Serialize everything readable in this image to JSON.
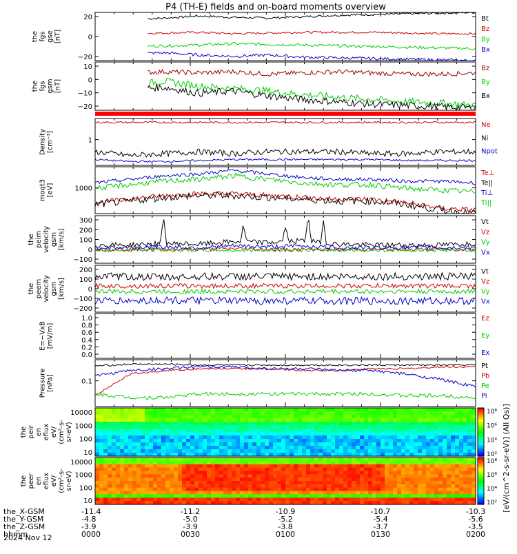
{
  "title": "P4 (TH-E) fields and on-board moments overview",
  "colorbar_label": "[eV/(cm^2-s-sr-eV)] (All Qs)]",
  "colorbar_ticks": [
    "10⁸",
    "10⁶",
    "10⁴",
    "10²"
  ],
  "colorbar_ticks2": [
    "10⁸",
    "10⁶",
    "10⁴",
    "10²"
  ],
  "date": "2024 Nov 12",
  "ephem": {
    "labels": [
      "the_X-GSM",
      "the_Y-GSM",
      "the_Z-GSM",
      "hhmm"
    ],
    "columns": [
      [
        "-11.4",
        "-4.8",
        "-3.9",
        "0000"
      ],
      [
        "-11.2",
        "-5.0",
        "-3.9",
        "0030"
      ],
      [
        "-10.9",
        "-5.2",
        "-3.8",
        "0100"
      ],
      [
        "-10.7",
        "-5.4",
        "-3.7",
        "0130"
      ],
      [
        "-10.3",
        "-5.6",
        "-3.5",
        "0200"
      ]
    ]
  },
  "chart_data": [
    {
      "type": "line",
      "ylabel": [
        "the",
        "fgs",
        "gse",
        "[nT]"
      ],
      "yticks": [
        "20",
        "0",
        "−20"
      ],
      "ylim": [
        -30,
        38
      ],
      "series": [
        {
          "name": "Bt",
          "color": "#000000",
          "start": 0.14,
          "base": 30,
          "shape": [
            0,
            -2,
            0,
            3,
            1,
            0,
            2,
            4,
            5,
            6,
            7,
            8
          ],
          "noise": 1.5
        },
        {
          "name": "Bz",
          "color": "#cc0000",
          "start": 0.14,
          "base": 7,
          "shape": [
            0,
            1,
            2,
            3,
            1,
            2,
            3,
            3,
            3,
            2,
            1,
            1
          ],
          "noise": 1.5
        },
        {
          "name": "By",
          "color": "#00cc00",
          "start": 0.14,
          "base": -8,
          "shape": [
            0,
            -2,
            -1,
            0,
            2,
            1,
            0,
            -1,
            -2,
            -3,
            -4,
            -5
          ],
          "noise": 2
        },
        {
          "name": "Bx",
          "color": "#0000cc",
          "start": 0.14,
          "base": -22,
          "shape": [
            0,
            2,
            3,
            0,
            -2,
            0,
            -3,
            -4,
            -5,
            -6,
            -7,
            -8
          ],
          "noise": 2
        }
      ]
    },
    {
      "type": "line",
      "ylabel": [
        "the",
        "fgs",
        "gsm",
        "[nT]"
      ],
      "yticks": [
        "10",
        "0",
        "−10",
        "−20"
      ],
      "ylim": [
        -26,
        14
      ],
      "series": [
        {
          "name": "Bz",
          "color": "#990000",
          "start": 0.14,
          "base": 3,
          "shape": [
            0,
            2,
            3,
            2,
            3,
            1,
            2,
            3,
            2,
            1,
            1,
            2
          ],
          "noise": 2
        },
        {
          "name": "By",
          "color": "#00cc00",
          "start": 0.14,
          "base": -10,
          "shape": [
            0,
            5,
            8,
            4,
            2,
            0,
            -3,
            -5,
            -7,
            -9,
            -10,
            -12
          ],
          "noise": 3
        },
        {
          "name": "Bx",
          "color": "#000000",
          "start": 0.14,
          "base": -12,
          "shape": [
            0,
            4,
            5,
            0,
            2,
            -2,
            -5,
            -7,
            -9,
            -10,
            -11,
            -12
          ],
          "noise": 3
        }
      ]
    },
    {
      "type": "bar_strip",
      "color": "#ff0000"
    },
    {
      "type": "line",
      "ylabel": [
        "Density",
        "[cm⁻³]"
      ],
      "yticks": [
        "1"
      ],
      "ylim": [
        -1.2,
        1.2
      ],
      "series": [
        {
          "name": "Ne",
          "color": "#cc0000",
          "start": 0,
          "base": 1,
          "shape": [
            0,
            0,
            0,
            0,
            0,
            0,
            0,
            0,
            0,
            0,
            0,
            0
          ],
          "noise": 0.05
        },
        {
          "name": "Ni",
          "color": "#000000",
          "start": 0,
          "base": -0.5,
          "shape": [
            0,
            -0.2,
            -0.1,
            0,
            -0.1,
            0,
            0,
            0,
            -0.1,
            -0.1,
            0,
            0
          ],
          "noise": 0.15
        },
        {
          "name": "Npot",
          "color": "#0000cc",
          "start": 0,
          "base": -0.9,
          "shape": [
            0,
            -0.1,
            -0.1,
            -0.05,
            0,
            0,
            0,
            0,
            0,
            -0.05,
            -0.05,
            -0.05
          ],
          "noise": 0.05
        }
      ]
    },
    {
      "type": "line",
      "ylabel": [
        "moqt3",
        "[eV]"
      ],
      "yticks": [
        "1000"
      ],
      "ylim": [
        -1.2,
        1.4
      ],
      "series": [
        {
          "name": "Te⊥",
          "color": "#cc0000",
          "start": 0,
          "base": -0.6,
          "shape": [
            0,
            0.2,
            0.4,
            0.5,
            0.5,
            0.4,
            0.3,
            0.2,
            0.2,
            0,
            -0.3,
            -0.4
          ],
          "noise": 0.15
        },
        {
          "name": "Te||",
          "color": "#000000",
          "start": 0,
          "base": -0.7,
          "shape": [
            0,
            0.2,
            0.4,
            0.5,
            0.5,
            0.4,
            0.3,
            0.2,
            0.2,
            0,
            -0.3,
            -0.5
          ],
          "noise": 0.2
        },
        {
          "name": "Ti⊥",
          "color": "#0000cc",
          "start": 0,
          "base": 0.5,
          "shape": [
            0,
            0.2,
            0.4,
            0.5,
            0.7,
            0.5,
            0.3,
            0.2,
            0.2,
            0.1,
            0.1,
            0
          ],
          "noise": 0.1
        },
        {
          "name": "Ti||",
          "color": "#00cc00",
          "start": 0,
          "base": 0.2,
          "shape": [
            0,
            0.2,
            0.4,
            0.5,
            0.7,
            0.5,
            0.3,
            0.2,
            0.2,
            0,
            -0.1,
            -0.2
          ],
          "noise": 0.15
        }
      ]
    },
    {
      "type": "line",
      "ylabel": [
        "the",
        "peim",
        "velocity",
        "gsm",
        "[km/s]"
      ],
      "yticks": [
        "300",
        "200",
        "100",
        "0",
        "−100"
      ],
      "ylim": [
        -150,
        400
      ],
      "series": [
        {
          "name": "Vt",
          "color": "#000000",
          "start": 0,
          "base": 60,
          "shape": [
            0,
            0,
            20,
            10,
            40,
            30,
            50,
            10,
            0,
            0,
            0,
            20
          ],
          "noise": 30,
          "spikes": [
            [
              0.18,
              300
            ],
            [
              0.39,
              200
            ],
            [
              0.5,
              180
            ],
            [
              0.56,
              320
            ],
            [
              0.6,
              250
            ]
          ]
        },
        {
          "name": "Vz",
          "color": "#cc0000",
          "start": 0,
          "base": 10,
          "shape": [
            0,
            0,
            0,
            0,
            10,
            0,
            0,
            0,
            0,
            0,
            0,
            0
          ],
          "noise": 20
        },
        {
          "name": "Vy",
          "color": "#00cc00",
          "start": 0,
          "base": 0,
          "shape": [
            0,
            0,
            0,
            0,
            0,
            0,
            0,
            0,
            0,
            0,
            0,
            0
          ],
          "noise": 20
        },
        {
          "name": "Vx",
          "color": "#0000cc",
          "start": 0,
          "base": 30,
          "shape": [
            0,
            0,
            10,
            0,
            20,
            10,
            20,
            0,
            0,
            0,
            0,
            0
          ],
          "noise": 25
        }
      ]
    },
    {
      "type": "line",
      "ylabel": [
        "the",
        "peem",
        "velocity",
        "gsm",
        "[km/s]"
      ],
      "yticks": [
        "200",
        "100",
        "0",
        "−100",
        "−200"
      ],
      "ylim": [
        -250,
        250
      ],
      "series": [
        {
          "name": "Vt",
          "color": "#000000",
          "start": 0,
          "base": 130,
          "shape": [
            0,
            0,
            -10,
            0,
            0,
            0,
            0,
            0,
            0,
            0,
            0,
            0
          ],
          "noise": 40
        },
        {
          "name": "Vz",
          "color": "#cc0000",
          "start": 0,
          "base": 30,
          "shape": [
            0,
            0,
            0,
            0,
            0,
            0,
            0,
            0,
            0,
            0,
            0,
            0
          ],
          "noise": 25
        },
        {
          "name": "Vy",
          "color": "#00cc00",
          "start": 0,
          "base": -30,
          "shape": [
            0,
            0,
            0,
            0,
            0,
            0,
            0,
            0,
            0,
            0,
            0,
            0
          ],
          "noise": 25
        },
        {
          "name": "Vx",
          "color": "#0000cc",
          "start": 0,
          "base": -130,
          "shape": [
            0,
            0,
            10,
            0,
            0,
            0,
            0,
            0,
            0,
            0,
            0,
            0
          ],
          "noise": 40
        }
      ]
    },
    {
      "type": "empty",
      "ylabel": [
        "E=−VxB",
        "[mV/m]"
      ],
      "yticks": [
        "1.0",
        "0.8",
        "0.6",
        "0.4",
        "0.2",
        "0.0"
      ],
      "legend": [
        {
          "name": "Ez",
          "color": "#cc0000"
        },
        {
          "name": "Ey",
          "color": "#00cc00"
        },
        {
          "name": "Ex",
          "color": "#0000cc"
        }
      ]
    },
    {
      "type": "line",
      "ylabel": [
        "Pressure",
        "[nPa]"
      ],
      "yticks": [
        "0.1"
      ],
      "ylim": [
        -1.4,
        1.2
      ],
      "series": [
        {
          "name": "Pt",
          "color": "#000000",
          "start": 0,
          "base": 0.85,
          "shape": [
            0,
            0.1,
            0.1,
            0.05,
            0.05,
            0.05,
            0.05,
            0.05,
            0.05,
            0.05,
            0.05,
            0.05
          ],
          "noise": 0.05
        },
        {
          "name": "Pb",
          "color": "#cc0000",
          "start": 0,
          "base": -0.8,
          "shape": [
            0,
            1.2,
            1.4,
            1.5,
            1.5,
            1.5,
            1.4,
            1.4,
            1.5,
            1.5,
            1.6,
            1.6
          ],
          "noise": 0.05
        },
        {
          "name": "Pe",
          "color": "#00cc00",
          "start": 0,
          "base": -0.7,
          "shape": [
            0,
            -0.2,
            -0.2,
            0,
            0,
            0,
            0,
            0,
            0,
            -0.1,
            -0.1,
            -0.2
          ],
          "noise": 0.1
        },
        {
          "name": "Pi",
          "color": "#0000cc",
          "start": 0,
          "base": 0.3,
          "shape": [
            0,
            0.3,
            0.4,
            0.5,
            0.5,
            0.4,
            0.4,
            0.3,
            0.3,
            0.1,
            -0.2,
            -0.6
          ],
          "noise": 0.08
        }
      ]
    },
    {
      "type": "heatmap",
      "ylabel": [
        "the",
        "peir",
        "en",
        "eflux",
        "eV/",
        "(cm²-s-",
        "sr-eV)"
      ],
      "yticks": [
        "10000",
        "1000",
        "100",
        "10"
      ],
      "profile": "ion"
    },
    {
      "type": "heatmap",
      "ylabel": [
        "the",
        "peer",
        "en",
        "eflux",
        "eV/",
        "(cm²-s-",
        "sr-eV)"
      ],
      "yticks": [
        "10000",
        "1000",
        "100",
        "10"
      ],
      "profile": "electron"
    }
  ]
}
